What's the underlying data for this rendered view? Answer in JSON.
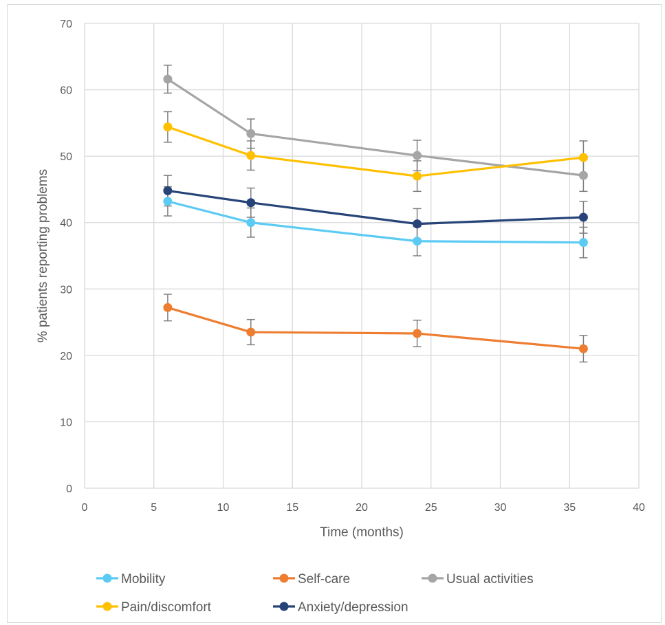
{
  "chart_data": {
    "type": "line",
    "title": "",
    "xlabel": "Time (months)",
    "ylabel": "% patients reporting problems",
    "xlim": [
      0,
      40
    ],
    "ylim": [
      0,
      70
    ],
    "xticks": [
      0,
      5,
      10,
      15,
      20,
      25,
      30,
      35,
      40
    ],
    "yticks": [
      0,
      10,
      20,
      30,
      40,
      50,
      60,
      70
    ],
    "grid": true,
    "legend_position": "bottom",
    "x": [
      6,
      12,
      24,
      36
    ],
    "series": [
      {
        "name": "Mobility",
        "color": "#5ccbf4",
        "values": [
          43.2,
          40.0,
          37.2,
          37.0
        ],
        "err": [
          2.2,
          2.2,
          2.2,
          2.3
        ]
      },
      {
        "name": "Self-care",
        "color": "#ed7d31",
        "values": [
          27.2,
          23.5,
          23.3,
          21.0
        ],
        "err": [
          2.0,
          1.9,
          2.0,
          2.0
        ]
      },
      {
        "name": "Usual activities",
        "color": "#a5a5a5",
        "values": [
          61.6,
          53.4,
          50.1,
          47.1
        ],
        "err": [
          2.1,
          2.2,
          2.3,
          2.4
        ]
      },
      {
        "name": "Pain/discomfort",
        "color": "#ffc000",
        "values": [
          54.4,
          50.1,
          47.0,
          49.8
        ],
        "err": [
          2.3,
          2.2,
          2.3,
          2.5
        ]
      },
      {
        "name": "Anxiety/depression",
        "color": "#264478",
        "values": [
          44.8,
          43.0,
          39.8,
          40.8
        ],
        "err": [
          2.3,
          2.2,
          2.3,
          2.4
        ]
      }
    ],
    "error_bar_color": "#7f7f7f"
  }
}
